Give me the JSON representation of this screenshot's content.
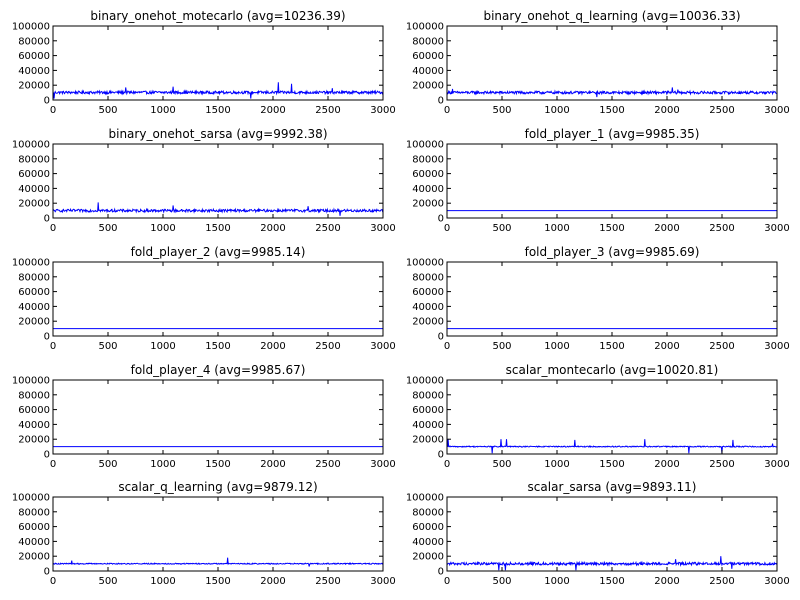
{
  "chart_data": [
    {
      "type": "line",
      "title": "binary_onehot_motecarlo (avg=10236.39)",
      "xlim": [
        0,
        3000
      ],
      "ylim": [
        0,
        100000
      ],
      "avg": 10236.39,
      "noise": "high",
      "color": "#0000ff",
      "xticks": [
        "0",
        "500",
        "1000",
        "1500",
        "2000",
        "2500",
        "3000"
      ],
      "yticks": [
        "0",
        "20000",
        "40000",
        "60000",
        "80000",
        "100000"
      ],
      "spikes": [
        [
          10,
          2000
        ],
        [
          660,
          17000
        ],
        [
          1090,
          18000
        ],
        [
          1800,
          2000
        ],
        [
          2050,
          24000
        ],
        [
          2170,
          22000
        ],
        [
          2540,
          16000
        ]
      ]
    },
    {
      "type": "line",
      "title": "binary_onehot_q_learning (avg=10036.33)",
      "xlim": [
        0,
        3000
      ],
      "ylim": [
        0,
        100000
      ],
      "avg": 10036.33,
      "noise": "high",
      "color": "#0000ff",
      "xticks": [
        "0",
        "500",
        "1000",
        "1500",
        "2000",
        "2500",
        "3000"
      ],
      "yticks": [
        "0",
        "20000",
        "40000",
        "60000",
        "80000",
        "100000"
      ],
      "spikes": [
        [
          50,
          15000
        ],
        [
          1360,
          16000
        ],
        [
          1360,
          4000
        ],
        [
          2050,
          17000
        ],
        [
          2100,
          14000
        ]
      ]
    },
    {
      "type": "line",
      "title": "binary_onehot_sarsa (avg=9992.38)",
      "xlim": [
        0,
        3000
      ],
      "ylim": [
        0,
        100000
      ],
      "avg": 9992.38,
      "noise": "high",
      "color": "#0000ff",
      "xticks": [
        "0",
        "500",
        "1000",
        "1500",
        "2000",
        "2500",
        "3000"
      ],
      "yticks": [
        "0",
        "20000",
        "40000",
        "60000",
        "80000",
        "100000"
      ],
      "spikes": [
        [
          410,
          21000
        ],
        [
          1090,
          17000
        ],
        [
          2320,
          16000
        ],
        [
          2610,
          3000
        ]
      ]
    },
    {
      "type": "line",
      "title": "fold_player_1 (avg=9985.35)",
      "xlim": [
        0,
        3000
      ],
      "ylim": [
        0,
        100000
      ],
      "avg": 9985.35,
      "noise": "flat",
      "color": "#0000ff",
      "xticks": [
        "0",
        "500",
        "1000",
        "1500",
        "2000",
        "2500",
        "3000"
      ],
      "yticks": [
        "0",
        "20000",
        "40000",
        "60000",
        "80000",
        "100000"
      ],
      "spikes": []
    },
    {
      "type": "line",
      "title": "fold_player_2 (avg=9985.14)",
      "xlim": [
        0,
        3000
      ],
      "ylim": [
        0,
        100000
      ],
      "avg": 9985.14,
      "noise": "flat",
      "color": "#0000ff",
      "xticks": [
        "0",
        "500",
        "1000",
        "1500",
        "2000",
        "2500",
        "3000"
      ],
      "yticks": [
        "0",
        "20000",
        "40000",
        "60000",
        "80000",
        "100000"
      ],
      "spikes": []
    },
    {
      "type": "line",
      "title": "fold_player_3 (avg=9985.69)",
      "xlim": [
        0,
        3000
      ],
      "ylim": [
        0,
        100000
      ],
      "avg": 9985.69,
      "noise": "flat",
      "color": "#0000ff",
      "xticks": [
        "0",
        "500",
        "1000",
        "1500",
        "2000",
        "2500",
        "3000"
      ],
      "yticks": [
        "0",
        "20000",
        "40000",
        "60000",
        "80000",
        "100000"
      ],
      "spikes": []
    },
    {
      "type": "line",
      "title": "fold_player_4 (avg=9985.67)",
      "xlim": [
        0,
        3000
      ],
      "ylim": [
        0,
        100000
      ],
      "avg": 9985.67,
      "noise": "flat",
      "color": "#0000ff",
      "xticks": [
        "0",
        "500",
        "1000",
        "1500",
        "2000",
        "2500",
        "3000"
      ],
      "yticks": [
        "0",
        "20000",
        "40000",
        "60000",
        "80000",
        "100000"
      ],
      "spikes": []
    },
    {
      "type": "line",
      "title": "scalar_montecarlo (avg=10020.81)",
      "xlim": [
        0,
        3000
      ],
      "ylim": [
        0,
        100000
      ],
      "avg": 10020.81,
      "noise": "low",
      "color": "#0000ff",
      "xticks": [
        "0",
        "500",
        "1000",
        "1500",
        "2000",
        "2500",
        "3000"
      ],
      "yticks": [
        "0",
        "20000",
        "40000",
        "60000",
        "80000",
        "100000"
      ],
      "spikes": [
        [
          10,
          20000
        ],
        [
          410,
          1000
        ],
        [
          490,
          20000
        ],
        [
          540,
          20000
        ],
        [
          1160,
          19000
        ],
        [
          1800,
          20000
        ],
        [
          2200,
          1000
        ],
        [
          2500,
          1000
        ],
        [
          2600,
          19000
        ],
        [
          2960,
          14000
        ]
      ]
    },
    {
      "type": "line",
      "title": "scalar_q_learning (avg=9879.12)",
      "xlim": [
        0,
        3000
      ],
      "ylim": [
        0,
        100000
      ],
      "avg": 9879.12,
      "noise": "low",
      "color": "#0000ff",
      "xticks": [
        "0",
        "500",
        "1000",
        "1500",
        "2000",
        "2500",
        "3000"
      ],
      "yticks": [
        "0",
        "20000",
        "40000",
        "60000",
        "80000",
        "100000"
      ],
      "spikes": [
        [
          170,
          14000
        ],
        [
          1590,
          18000
        ],
        [
          2330,
          6000
        ]
      ]
    },
    {
      "type": "line",
      "title": "scalar_sarsa (avg=9893.11)",
      "xlim": [
        0,
        3000
      ],
      "ylim": [
        0,
        100000
      ],
      "avg": 9893.11,
      "noise": "high",
      "color": "#0000ff",
      "xticks": [
        "0",
        "500",
        "1000",
        "1500",
        "2000",
        "2500",
        "3000"
      ],
      "yticks": [
        "0",
        "20000",
        "40000",
        "60000",
        "80000",
        "100000"
      ],
      "spikes": [
        [
          470,
          1000
        ],
        [
          530,
          1000
        ],
        [
          1170,
          1000
        ],
        [
          2080,
          16000
        ],
        [
          2490,
          20000
        ],
        [
          2590,
          3000
        ]
      ]
    }
  ]
}
